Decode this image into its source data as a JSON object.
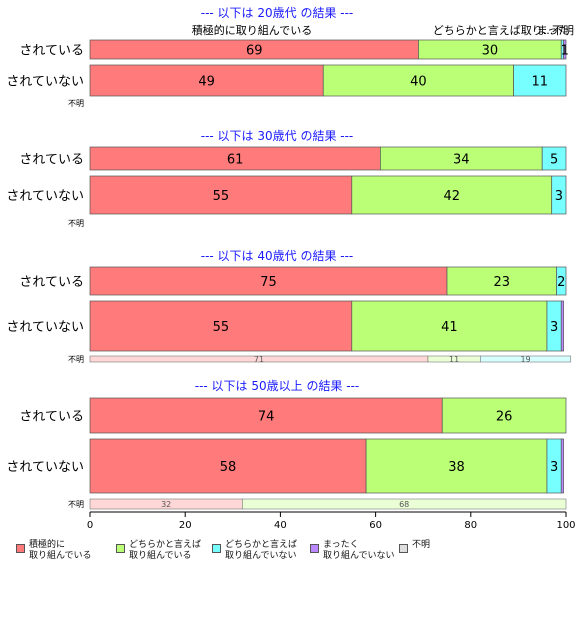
{
  "chart_data": {
    "type": "bar",
    "orientation": "horizontal",
    "stacked": true,
    "xlim": [
      0,
      100
    ],
    "xticks": [
      0,
      20,
      40,
      60,
      80,
      100
    ],
    "top_labels": [
      {
        "text": "積極的に取り組んでいる",
        "series": 0
      },
      {
        "text": "どちらかと言えば取り...",
        "series": 1
      },
      {
        "text": "まった",
        "series": 3
      },
      {
        "text": "不明",
        "series": 4
      }
    ],
    "series": [
      {
        "name": "積極的に\n取り組んでいる",
        "color": "#ff7a7a"
      },
      {
        "name": "どちらかと言えば\n取り組んでいる",
        "color": "#bbff77"
      },
      {
        "name": "どちらかと言えば\n取り組んでいない",
        "color": "#77ffff"
      },
      {
        "name": "まったく\n取り組んでいない",
        "color": "#bb88ff"
      },
      {
        "name": "不明",
        "color": "#dddddd"
      }
    ],
    "groups": [
      {
        "title": "--- 以下は 20歳代 の結果 ---",
        "rows": [
          {
            "label": "されている",
            "values": [
              69,
              30,
              0.5,
              0.5,
              0
            ],
            "value_labels": [
              "69",
              "30",
              "",
              "1",
              ""
            ]
          },
          {
            "label": "されていない",
            "values": [
              49,
              40,
              11,
              0,
              0
            ],
            "value_labels": [
              "49",
              "40",
              "11",
              "",
              ""
            ]
          }
        ],
        "unknown": {
          "label": "不明",
          "values": [],
          "value_labels": []
        }
      },
      {
        "title": "--- 以下は 30歳代 の結果 ---",
        "rows": [
          {
            "label": "されている",
            "values": [
              61,
              34,
              5,
              0,
              0
            ],
            "value_labels": [
              "61",
              "34",
              "5",
              "",
              ""
            ]
          },
          {
            "label": "されていない",
            "values": [
              55,
              42,
              3,
              0,
              0
            ],
            "value_labels": [
              "55",
              "42",
              "3",
              "",
              ""
            ]
          }
        ],
        "unknown": {
          "label": "不明",
          "values": [],
          "value_labels": []
        }
      },
      {
        "title": "--- 以下は 40歳代 の結果 ---",
        "rows": [
          {
            "label": "されている",
            "values": [
              75,
              23,
              2,
              0,
              0
            ],
            "value_labels": [
              "75",
              "23",
              "2",
              "",
              ""
            ]
          },
          {
            "label": "されていない",
            "values": [
              55,
              41,
              3,
              0.5,
              0
            ],
            "value_labels": [
              "55",
              "41",
              "3",
              "",
              ""
            ]
          }
        ],
        "unknown": {
          "label": "不明",
          "values": [
            71,
            11,
            19,
            0,
            0
          ],
          "value_labels": [
            "71",
            "11",
            "19",
            "",
            ""
          ]
        }
      },
      {
        "title": "--- 以下は 50歳以上 の結果 ---",
        "rows": [
          {
            "label": "されている",
            "values": [
              74,
              26,
              0,
              0,
              0
            ],
            "value_labels": [
              "74",
              "26",
              "",
              "",
              ""
            ]
          },
          {
            "label": "されていない",
            "values": [
              58,
              38,
              3,
              0.5,
              0
            ],
            "value_labels": [
              "58",
              "38",
              "3",
              "",
              ""
            ]
          }
        ],
        "unknown": {
          "label": "不明",
          "values": [
            32,
            68,
            0,
            0,
            0
          ],
          "value_labels": [
            "32",
            "68",
            "",
            "",
            ""
          ]
        }
      }
    ]
  }
}
